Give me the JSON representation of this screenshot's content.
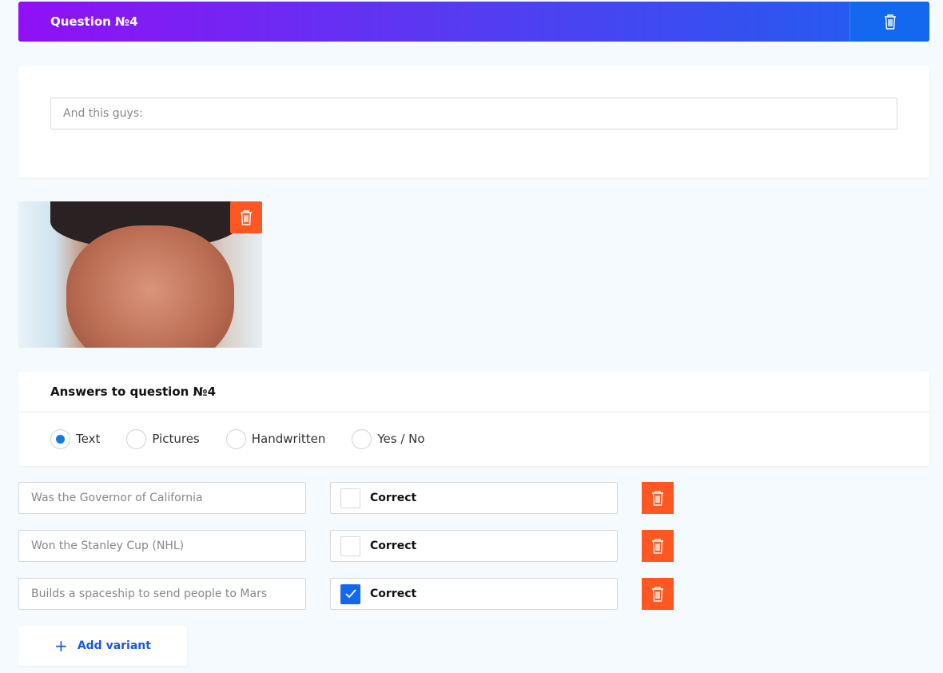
{
  "header": {
    "title": "Question №4",
    "delete_icon": "trash-icon"
  },
  "question": {
    "text_value": "And this guys:"
  },
  "image": {
    "delete_icon": "trash-icon"
  },
  "answers": {
    "title": "Answers to question №4",
    "types": [
      {
        "label": "Text",
        "selected": true
      },
      {
        "label": "Pictures",
        "selected": false
      },
      {
        "label": "Handwritten",
        "selected": false
      },
      {
        "label": "Yes / No",
        "selected": false
      }
    ],
    "variants": [
      {
        "text": "Was the Governor of California",
        "correct_label": "Correct",
        "correct": false
      },
      {
        "text": "Won the Stanley Cup (NHL)",
        "correct_label": "Correct",
        "correct": false
      },
      {
        "text": "Builds a spaceship to send people to Mars",
        "correct_label": "Correct",
        "correct": true
      }
    ],
    "add_label": "Add variant"
  },
  "colors": {
    "accent": "#1468ef",
    "danger": "#ff5722",
    "gradient_start": "#9010f5",
    "gradient_end": "#1e60ef"
  }
}
